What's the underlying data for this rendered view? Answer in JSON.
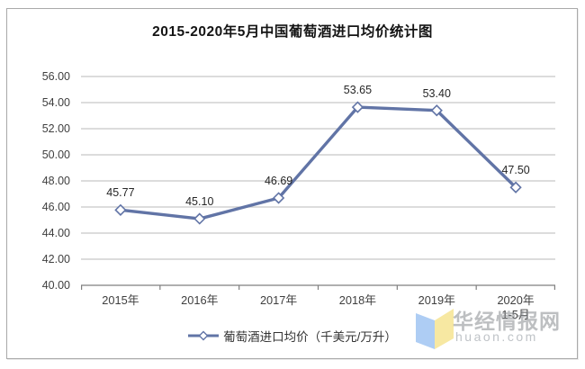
{
  "chart_data": {
    "type": "line",
    "title": "2015-2020年5月中国葡萄酒进口均价统计图",
    "categories": [
      "2015年",
      "2016年",
      "2017年",
      "2018年",
      "2019年",
      "2020年\n1-5月"
    ],
    "values": [
      45.77,
      45.1,
      46.69,
      53.65,
      53.4,
      47.5
    ],
    "labels": [
      "45.77",
      "45.10",
      "46.69",
      "53.65",
      "53.40",
      "47.50"
    ],
    "series_name": "葡萄酒进口均价（千美元/万升）",
    "ylim": [
      40,
      56
    ],
    "ytick_step": 2,
    "yticks": [
      "56.00",
      "54.00",
      "52.00",
      "50.00",
      "48.00",
      "46.00",
      "44.00",
      "42.00",
      "40.00"
    ],
    "grid": true,
    "legend_position": "bottom",
    "marker": "open-diamond",
    "colors": {
      "line": "#6174a6",
      "marker_fill": "#ffffff",
      "grid": "#c6c6c6",
      "axis": "#7f7f7f",
      "text": "#3f3f3f",
      "frame_border": "#a9a9a9"
    }
  },
  "watermark": {
    "site_name": "华经情报网",
    "site_url": "huaon.com",
    "logo_blue": "#aecdf4",
    "logo_yellow": "#f7e8a2"
  }
}
